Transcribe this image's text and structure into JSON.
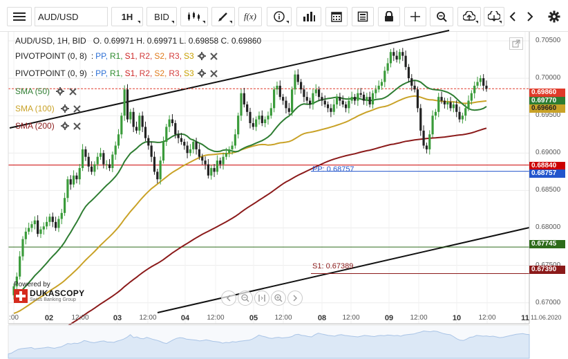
{
  "toolbar": {
    "symbol_value": "AUD/USD",
    "timeframe": "1H",
    "side": "BID",
    "icons": [
      "menu-icon",
      "candlestick-type-icon",
      "draw-icon",
      "function-icon",
      "info-icon",
      "indicators-icon",
      "calendar-icon",
      "report-icon",
      "lock-icon",
      "crosshair-icon",
      "zoom-icon",
      "upload-icon",
      "download-icon",
      "chevron-left-icon",
      "chevron-right-icon",
      "gear-icon"
    ]
  },
  "header": {
    "symbol": "AUD/USD, 1H, BID",
    "ohlc": "O. 0.69971 H. 0.69971 L. 0.69858 C. 0.69860"
  },
  "legend": {
    "pivot1": {
      "name": "PIVOTPOINT (0, 8)",
      "colon": ":",
      "items": [
        "PP,",
        "R1,",
        "S1,",
        "R2,",
        "S2,",
        "R3,",
        "S3"
      ]
    },
    "pivot2": {
      "name": "PIVOTPOINT (0, 9)",
      "colon": ":",
      "items": [
        "PP,",
        "R1,",
        "S1,",
        "R2,",
        "S2,",
        "R3,",
        "S3"
      ]
    },
    "sma50": "SMA (50)",
    "sma100": "SMA (100)",
    "sma200": "SMA (200)"
  },
  "level_labels": {
    "pp": "PP: 0.68757",
    "s1": "S1: 0.67389"
  },
  "price_tags": {
    "last": "0.69860",
    "sma50": "0.69770",
    "sma100": "0.69660",
    "red_level": "0.68840",
    "pp": "0.68757",
    "green_level": "0.67745",
    "s1": "0.67390"
  },
  "branding": {
    "powered": "Powered by",
    "name": "DUKASCOPY",
    "sub": "Swiss Banking Group"
  },
  "colors": {
    "sma50": "#2e7d32",
    "sma100": "#c9a227",
    "sma200": "#8b1a1a",
    "up": "#3a9b3a",
    "down": "#222222",
    "level_red": "#cc0000",
    "level_blue": "#2255cc",
    "level_green": "#2e6b1a"
  },
  "chart_data": {
    "type": "candlestick",
    "x_tick_labels": [
      ":00",
      "02",
      "12:00",
      "03",
      "12:00",
      "04",
      "12:00",
      "05",
      "12:00",
      "08",
      "12:00",
      "09",
      "12:00",
      "10",
      "12:00",
      "11",
      "11.06.2020"
    ],
    "y_tick_labels": [
      "0.70500",
      "0.70000",
      "0.69500",
      "0.69000",
      "0.68500",
      "0.68000",
      "0.67500",
      "0.67000"
    ],
    "ylim": [
      0.6672,
      0.7062
    ],
    "grid": true,
    "horizontal_levels": [
      {
        "name": "red-level",
        "value": 0.6884
      },
      {
        "name": "pp",
        "value": 0.68757
      },
      {
        "name": "green-level",
        "value": 0.67745
      },
      {
        "name": "s1",
        "value": 0.6739
      },
      {
        "name": "last-close",
        "value": 0.6986
      }
    ],
    "closes": [
      0.6722,
      0.6735,
      0.6762,
      0.6785,
      0.6795,
      0.68,
      0.6805,
      0.681,
      0.6792,
      0.6798,
      0.6802,
      0.6808,
      0.6815,
      0.6808,
      0.68,
      0.6812,
      0.682,
      0.684,
      0.6865,
      0.6858,
      0.687,
      0.6865,
      0.688,
      0.6905,
      0.6895,
      0.6882,
      0.6875,
      0.6885,
      0.6895,
      0.69,
      0.6885,
      0.6885,
      0.688,
      0.6898,
      0.691,
      0.6925,
      0.695,
      0.6985,
      0.6945,
      0.6955,
      0.6935,
      0.693,
      0.695,
      0.6935,
      0.692,
      0.691,
      0.6895,
      0.6875,
      0.6865,
      0.689,
      0.6915,
      0.6935,
      0.6945,
      0.694,
      0.6925,
      0.692,
      0.6915,
      0.691,
      0.69,
      0.6905,
      0.6915,
      0.6905,
      0.6895,
      0.689,
      0.6885,
      0.687,
      0.688,
      0.6875,
      0.689,
      0.6885,
      0.6895,
      0.69,
      0.6905,
      0.691,
      0.6925,
      0.695,
      0.698,
      0.6965,
      0.6955,
      0.694,
      0.6935,
      0.6945,
      0.695,
      0.694,
      0.6945,
      0.695,
      0.696,
      0.6985,
      0.699,
      0.6975,
      0.697,
      0.696,
      0.6955,
      0.6985,
      0.7005,
      0.6995,
      0.6985,
      0.6975,
      0.697,
      0.6965,
      0.698,
      0.6985,
      0.6975,
      0.697,
      0.6965,
      0.696,
      0.6955,
      0.6965,
      0.6975,
      0.697,
      0.6965,
      0.696,
      0.697,
      0.6975,
      0.697,
      0.698,
      0.6978,
      0.697,
      0.6975,
      0.6965,
      0.698,
      0.6985,
      0.699,
      0.6995,
      0.701,
      0.702,
      0.7035,
      0.703,
      0.7025,
      0.7035,
      0.703,
      0.7015,
      0.7,
      0.699,
      0.6985,
      0.696,
      0.693,
      0.691,
      0.6905,
      0.6925,
      0.695,
      0.6955,
      0.6975,
      0.697,
      0.6965,
      0.6968,
      0.696,
      0.6965,
      0.6955,
      0.6945,
      0.695,
      0.696,
      0.697,
      0.698,
      0.699,
      0.6995,
      0.7,
      0.699,
      0.6986
    ]
  }
}
